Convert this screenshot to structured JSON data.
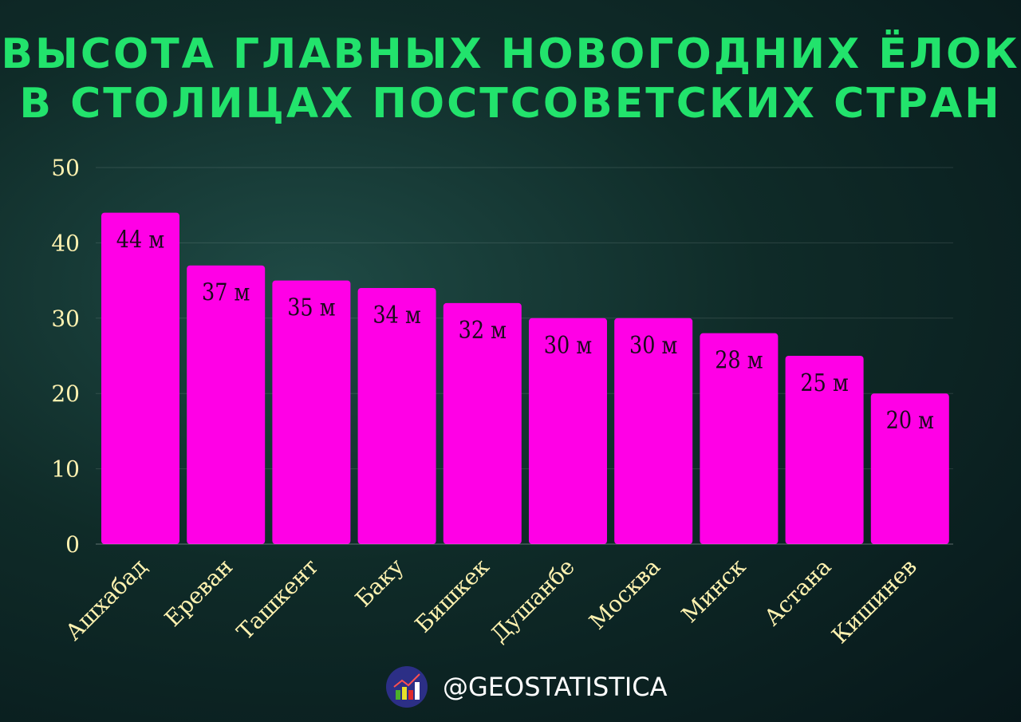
{
  "title_line1": "ВЫСОТА ГЛАВНЫХ НОВОГОДНИХ ЁЛОК",
  "title_line2": "В СТОЛИЦАХ ПОСТСОВЕТСКИХ СТРАН",
  "handle": "@GEOSTATISTICA",
  "chart_data": {
    "type": "bar",
    "title": "ВЫСОТА ГЛАВНЫХ НОВОГОДНИХ ЁЛОК В СТОЛИЦАХ ПОСТСОВЕТСКИХ СТРАН",
    "categories": [
      "Ашхабад",
      "Ереван",
      "Ташкент",
      "Баку",
      "Бишкек",
      "Душанбе",
      "Москва",
      "Минск",
      "Астана",
      "Кишинев"
    ],
    "values": [
      44,
      37,
      35,
      34,
      32,
      30,
      30,
      28,
      25,
      20
    ],
    "data_labels": [
      "44 м",
      "37 м",
      "35 м",
      "34 м",
      "32 м",
      "30 м",
      "30 м",
      "28 м",
      "25 м",
      "20 м"
    ],
    "ylim": [
      0,
      50
    ],
    "yticks": [
      0,
      10,
      20,
      30,
      40,
      50
    ],
    "xlabel": "",
    "ylabel": "",
    "grid": true,
    "colors": {
      "bar": "#ff00e6",
      "tick": "#fff2b0",
      "title": "#22e36c",
      "label": "#1a0a1a"
    }
  }
}
